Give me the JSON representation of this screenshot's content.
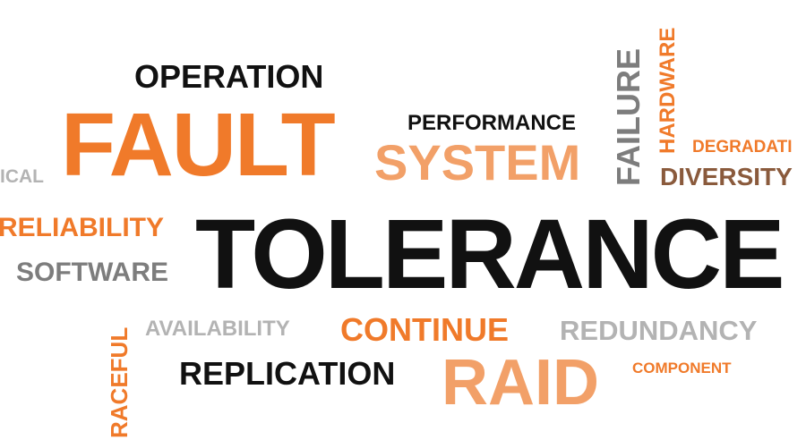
{
  "words": {
    "operation": "OPERATION",
    "fault": "FAULT",
    "performance": "PERFORMANCE",
    "system": "SYSTEM",
    "failure": "FAILURE",
    "hardware": "HARDWARE",
    "degradation": "DEGRADATI",
    "diversity": "DIVERSITY",
    "ical": "ICAL",
    "reliability": "RELIABILITY",
    "tolerance": "TOLERANCE",
    "software": "SOFTWARE",
    "graceful": "RACEFUL",
    "availability": "AVAILABILITY",
    "continue": "CONTINUE",
    "redundancy": "REDUNDANCY",
    "replication": "REPLICATION",
    "raid": "RAID",
    "component": "COMPONENT"
  },
  "colors": {
    "black": "#111111",
    "orange": "#f07a2a",
    "light_orange": "#f2a068",
    "gray": "#7d7d7d",
    "light_gray": "#b3b3b3",
    "brown": "#8a5a3c"
  }
}
